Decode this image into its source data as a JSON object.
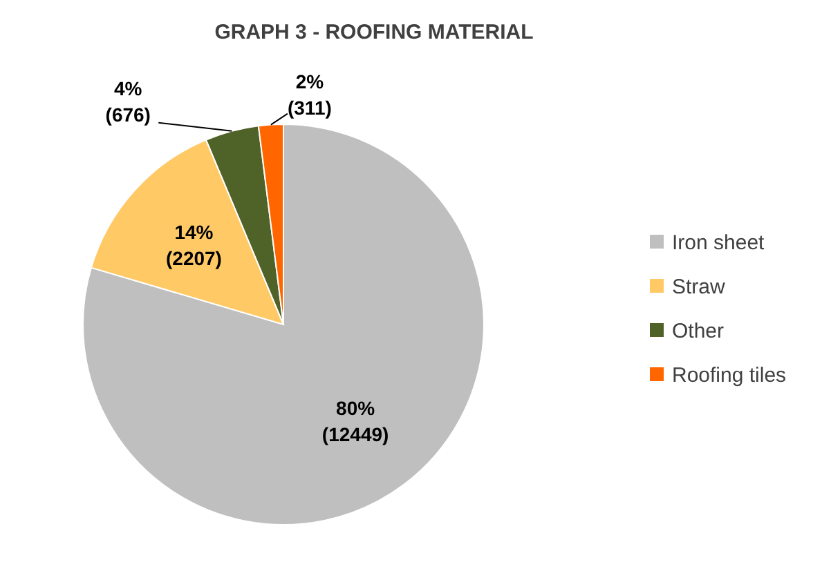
{
  "chart_data": {
    "type": "pie",
    "title": "GRAPH 3 - ROOFING MATERIAL",
    "categories": [
      "Iron sheet",
      "Straw",
      "Other",
      "Roofing tiles"
    ],
    "values": [
      12449,
      2207,
      676,
      311
    ],
    "value_labels": [
      "80%\n(12449)",
      "14%\n(2207)",
      "4%\n(676)",
      "2%\n(311)"
    ],
    "colors": [
      "#bfbfbf",
      "#ffc966",
      "#4f6228",
      "#ff6600"
    ],
    "legend": "right"
  }
}
